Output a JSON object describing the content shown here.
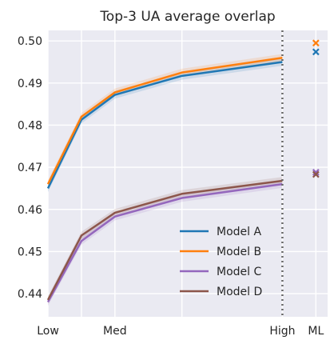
{
  "chart_data": {
    "type": "line",
    "title": "Top-3 UA average overlap",
    "xlabel": "",
    "ylabel": "",
    "x": [
      0,
      1,
      2,
      4,
      7
    ],
    "x_tick_positions": [
      0,
      1,
      2,
      4,
      7,
      8
    ],
    "x_tick_labels": [
      "Low",
      "",
      "Med",
      "",
      "High",
      "ML"
    ],
    "y_ticks": [
      0.44,
      0.45,
      0.46,
      0.47,
      0.48,
      0.49,
      0.5
    ],
    "y_tick_labels": [
      "0.44",
      "0.45",
      "0.46",
      "0.47",
      "0.48",
      "0.49",
      "0.50"
    ],
    "xlim": [
      0,
      8.35
    ],
    "ylim": [
      0.4345,
      0.5025
    ],
    "vline_x": 7,
    "ml_x": 8,
    "grid": true,
    "legend_position": "lower-right",
    "series": [
      {
        "name": "Model A",
        "color": "#1f77b4",
        "values": [
          0.465,
          0.4813,
          0.4872,
          0.4917,
          0.495
        ],
        "band": 0.0009,
        "ml_value": 0.4974
      },
      {
        "name": "Model B",
        "color": "#ff7f0e",
        "values": [
          0.466,
          0.482,
          0.4878,
          0.4925,
          0.496
        ],
        "band": 0.0009,
        "ml_value": 0.4995
      },
      {
        "name": "Model C",
        "color": "#9467bd",
        "values": [
          0.438,
          0.4525,
          0.4583,
          0.4627,
          0.466
        ],
        "band": 0.0009,
        "ml_value": 0.4688
      },
      {
        "name": "Model D",
        "color": "#8c564b",
        "values": [
          0.4385,
          0.4538,
          0.4592,
          0.4637,
          0.4668
        ],
        "band": 0.0009,
        "ml_value": 0.4683
      }
    ]
  }
}
